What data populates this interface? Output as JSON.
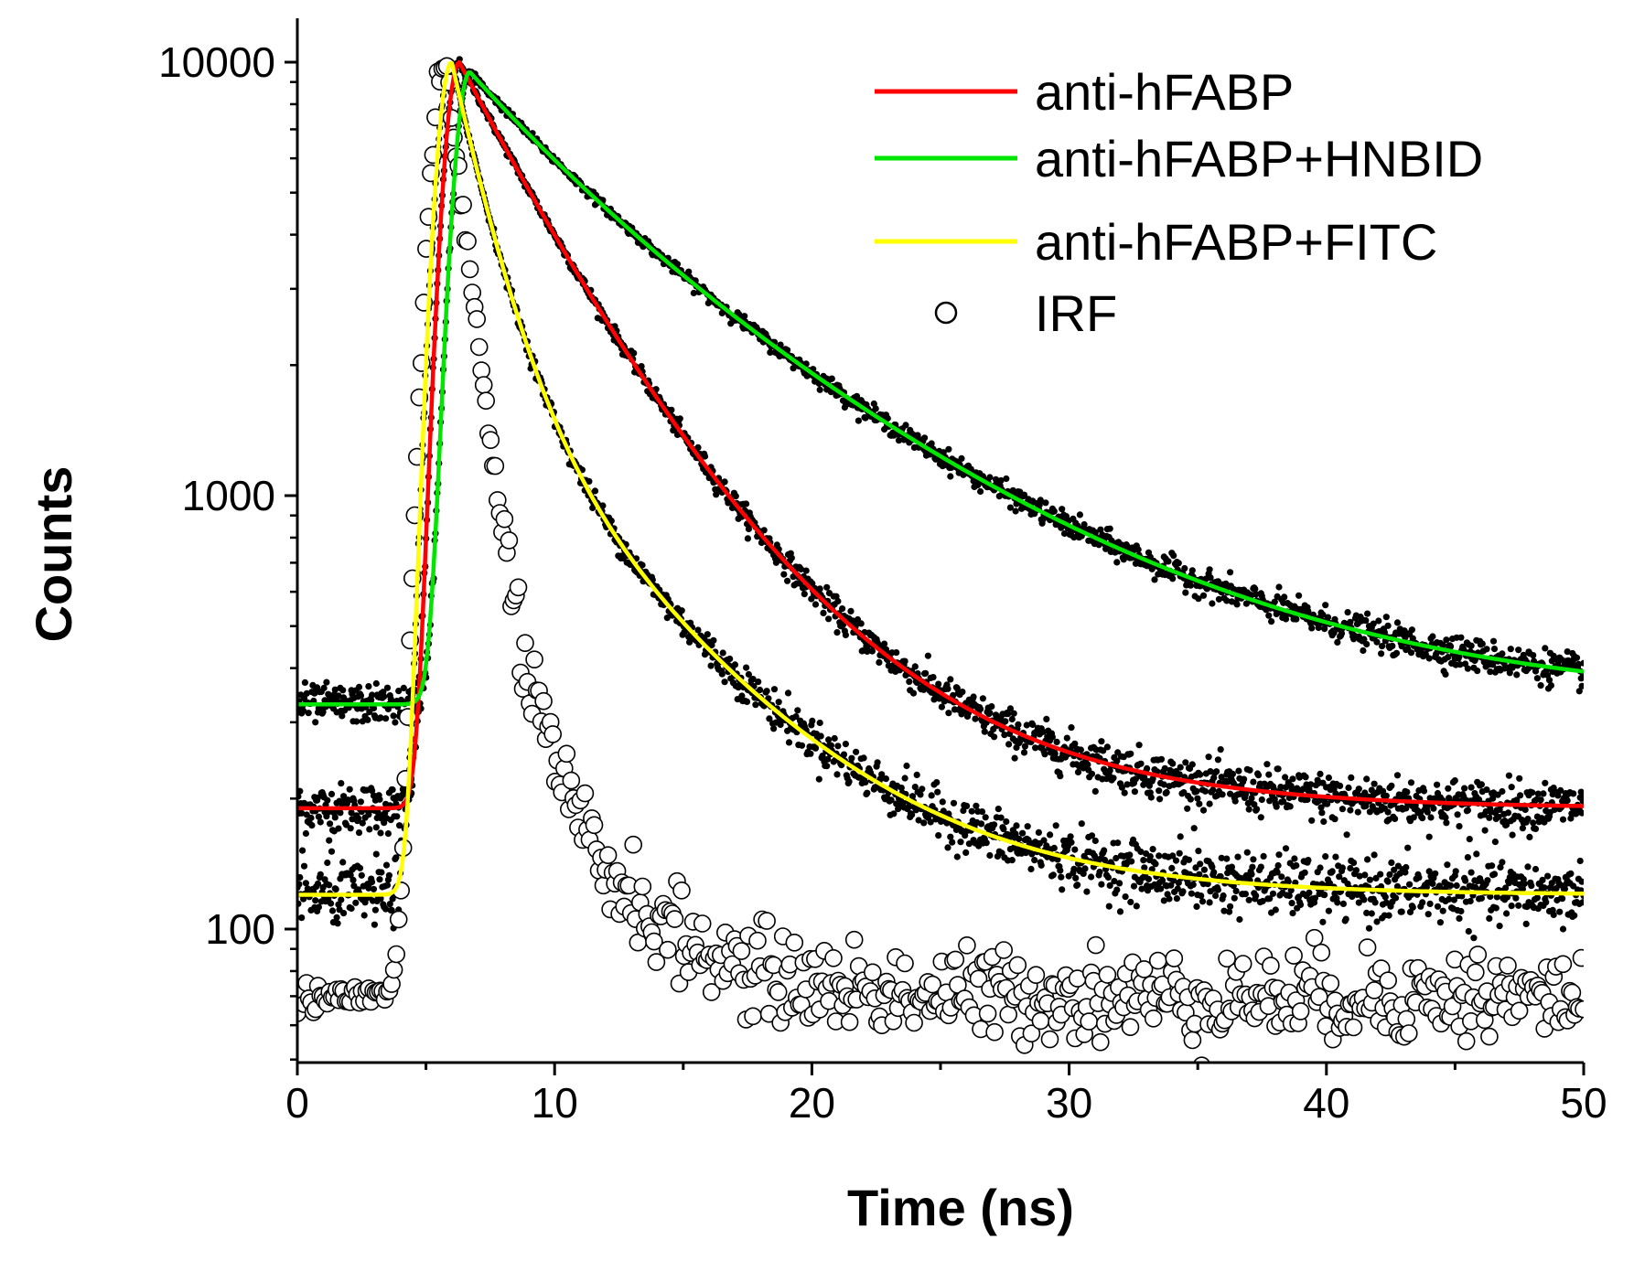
{
  "chart_data": {
    "type": "scatter",
    "title": "",
    "xlabel": "Time (ns)",
    "ylabel": "Counts",
    "xlim": [
      0,
      50
    ],
    "ylim": [
      50,
      12000
    ],
    "yscale": "log",
    "x_ticks": [
      0,
      10,
      20,
      30,
      40,
      50
    ],
    "x_tick_labels": [
      "0",
      "10",
      "20",
      "30",
      "40",
      "50"
    ],
    "y_ticks": [
      100,
      1000,
      10000
    ],
    "y_tick_labels": [
      "100",
      "1000",
      "10000"
    ],
    "legend_position": "top-right",
    "series": [
      {
        "name": "anti-hFABP",
        "color": "#ff0000",
        "style": "line-with-black-dots",
        "baseline": 190,
        "peak_time": 6.3,
        "peak": 10000,
        "components": [
          {
            "amplitude": 6600,
            "tau": 3.2
          },
          {
            "amplitude": 3200,
            "tau": 6.0
          }
        ]
      },
      {
        "name": "anti-hFABP+HNBID",
        "color": "#00e600",
        "style": "line-with-black-dots",
        "baseline": 330,
        "peak_time": 6.7,
        "peak": 9500,
        "components": [
          {
            "amplitude": 3200,
            "tau": 4.0
          },
          {
            "amplitude": 5970,
            "tau": 9.5
          }
        ]
      },
      {
        "name": "anti-hFABP+FITC",
        "color": "#ffff00",
        "style": "line-with-black-dots",
        "baseline": 120,
        "peak_time": 6.0,
        "peak": 10000,
        "components": [
          {
            "amplitude": 8000,
            "tau": 1.4
          },
          {
            "amplitude": 1880,
            "tau": 5.6
          }
        ]
      },
      {
        "name": "IRF",
        "color": "#000000",
        "style": "open-circles",
        "baseline": 70,
        "peak_time": 5.8,
        "peak": 10000,
        "components": [
          {
            "amplitude": 9400,
            "tau": 0.75
          },
          {
            "amplitude": 530,
            "tau": 3.0
          }
        ]
      }
    ]
  }
}
